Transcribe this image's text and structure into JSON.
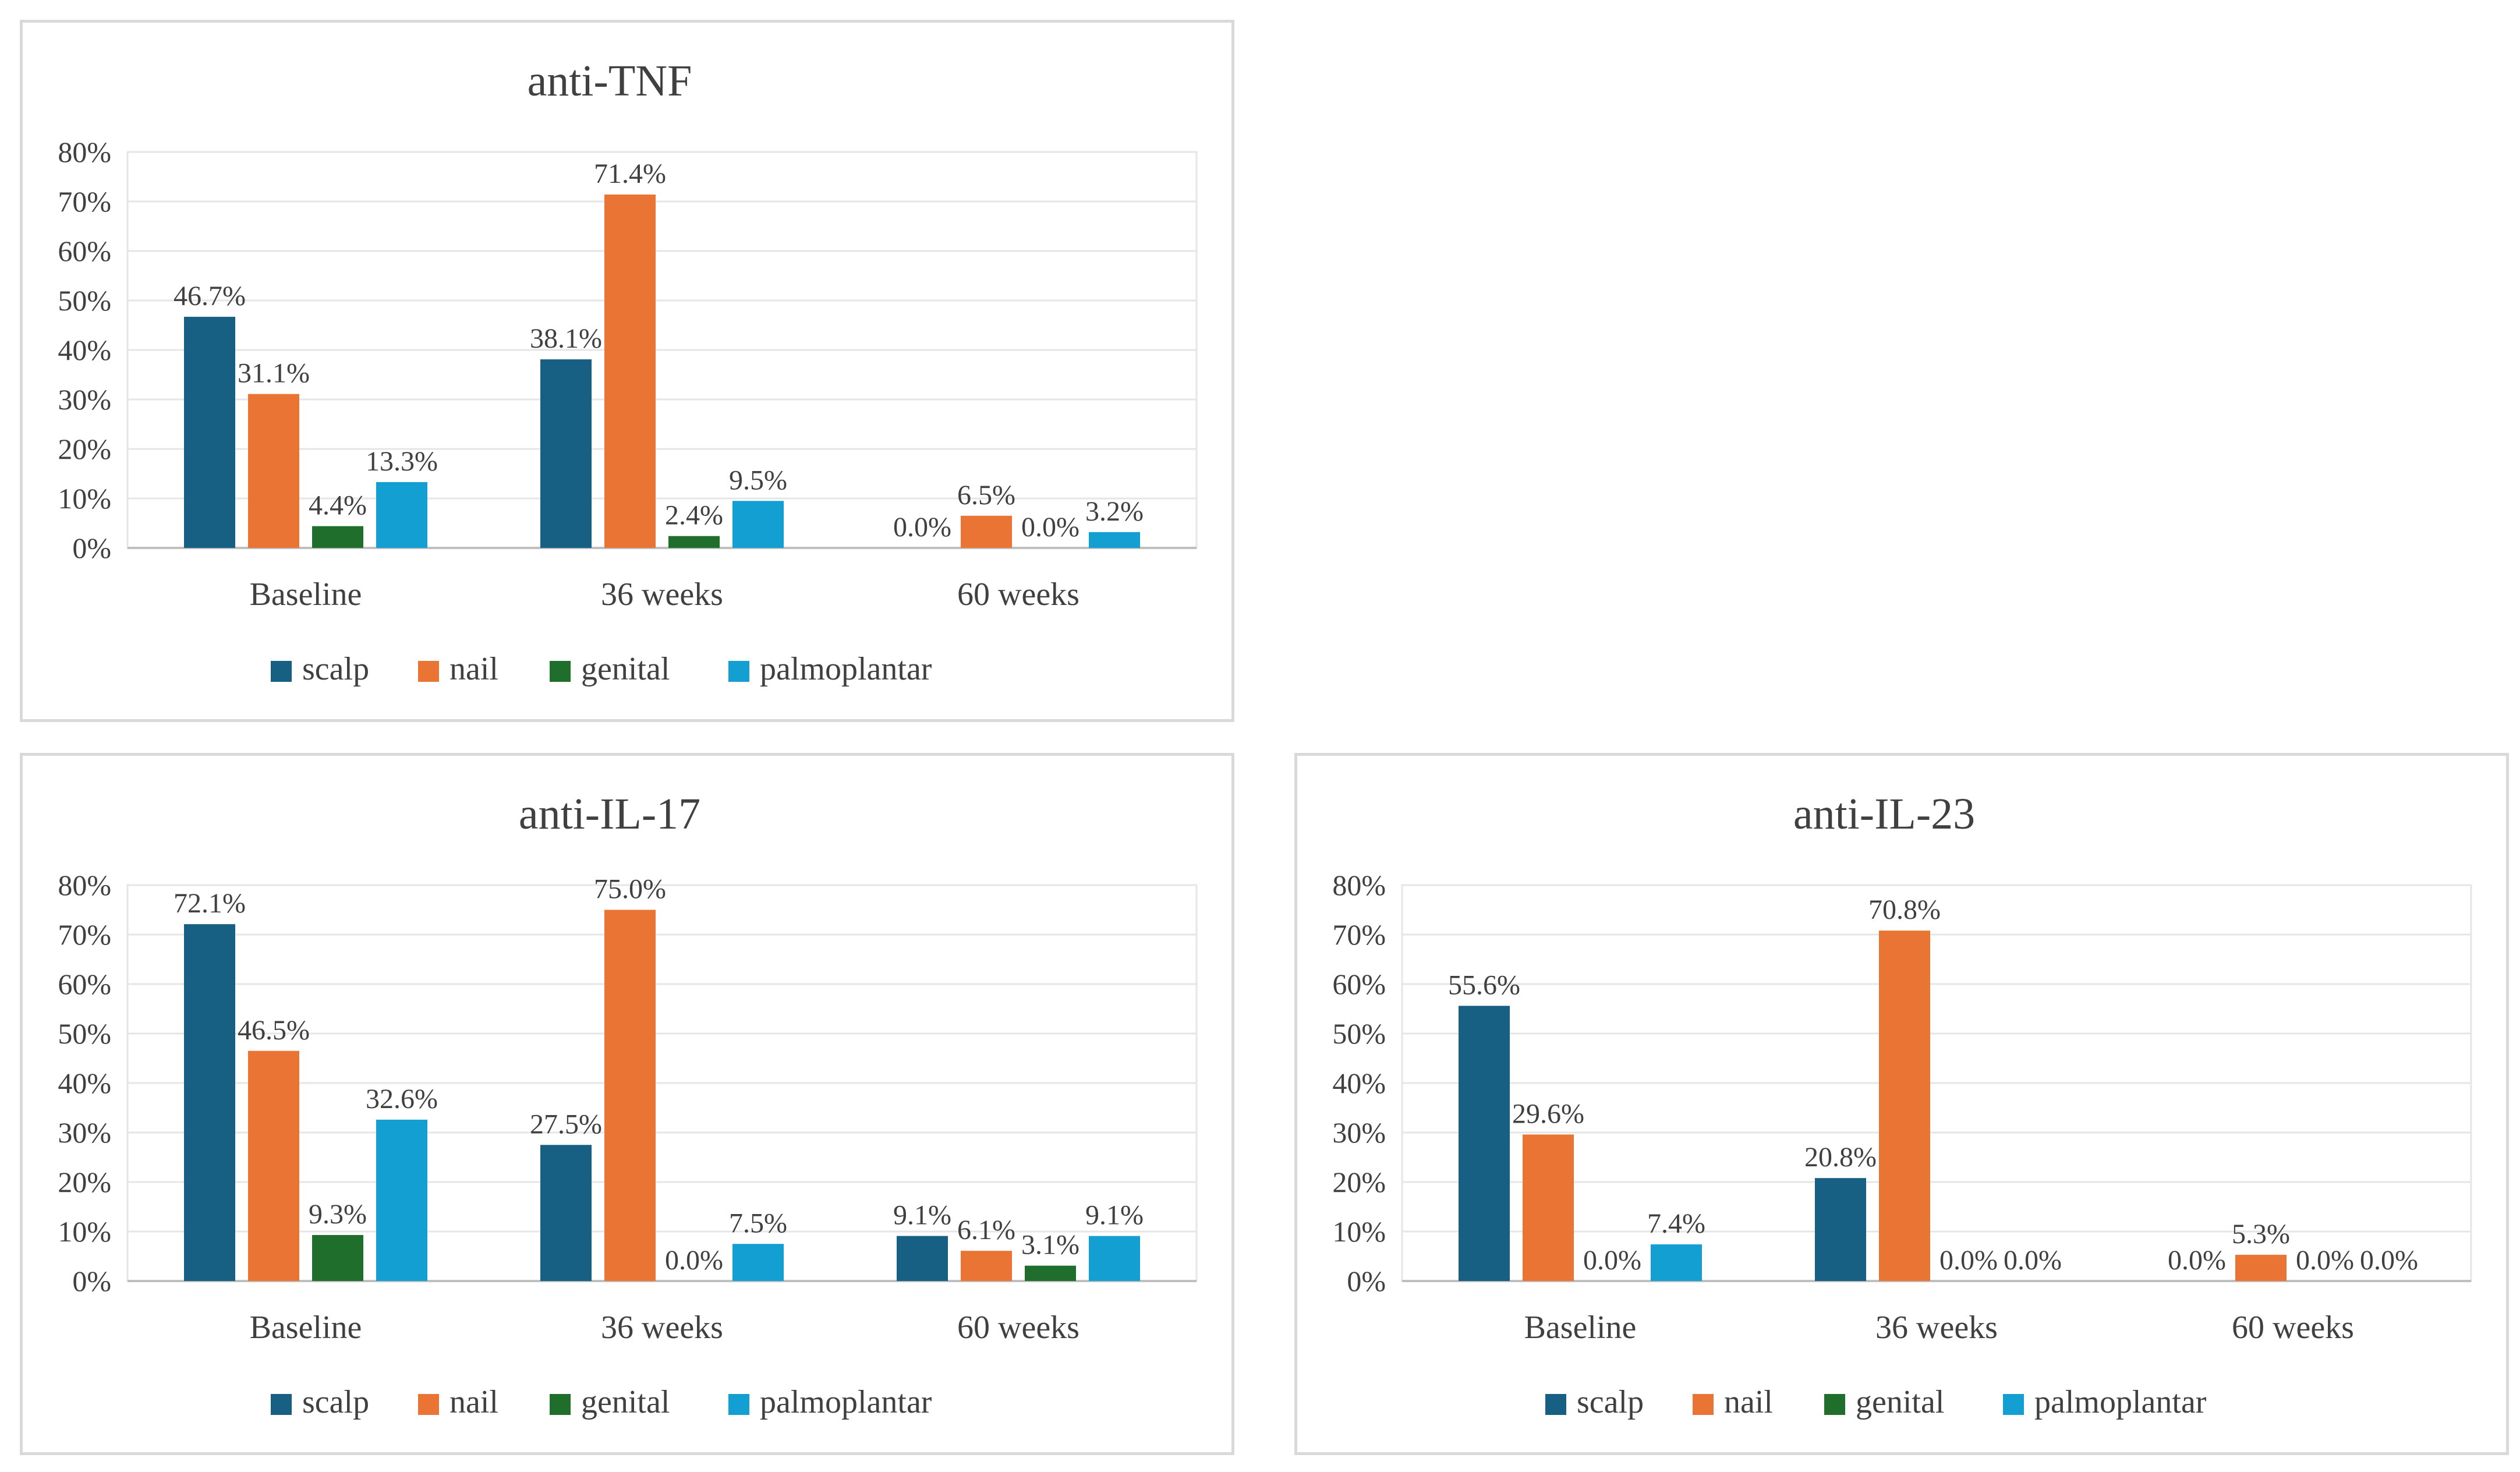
{
  "colors": {
    "scalp": "#176083",
    "nail": "#ea7433",
    "genital": "#1f6e2c",
    "palmoplantar": "#149fd3",
    "grid": "#e6e6e6",
    "axis": "#bfbfbf",
    "text": "#404040"
  },
  "chart_data": [
    {
      "type": "bar",
      "title": "anti-TNF",
      "categories": [
        "Baseline",
        "36 weeks",
        "60 weeks"
      ],
      "yticks": [
        "0%",
        "10%",
        "20%",
        "30%",
        "40%",
        "50%",
        "60%",
        "70%",
        "80%"
      ],
      "ylim": [
        0,
        80
      ],
      "legend_position": "bottom",
      "series": [
        {
          "name": "scalp",
          "values": [
            46.7,
            38.1,
            0.0
          ],
          "labels": [
            "46.7%",
            "38.1%",
            "0.0%"
          ]
        },
        {
          "name": "nail",
          "values": [
            31.1,
            71.4,
            6.5
          ],
          "labels": [
            "31.1%",
            "71.4%",
            "6.5%"
          ]
        },
        {
          "name": "genital",
          "values": [
            4.4,
            2.4,
            0.0
          ],
          "labels": [
            "4.4%",
            "2.4%",
            "0.0%"
          ]
        },
        {
          "name": "palmoplantar",
          "values": [
            13.3,
            9.5,
            3.2
          ],
          "labels": [
            "13.3%",
            "9.5%",
            "3.2%"
          ]
        }
      ]
    },
    {
      "type": "bar",
      "title": "anti-IL-17",
      "categories": [
        "Baseline",
        "36 weeks",
        "60 weeks"
      ],
      "yticks": [
        "0%",
        "10%",
        "20%",
        "30%",
        "40%",
        "50%",
        "60%",
        "70%",
        "80%"
      ],
      "ylim": [
        0,
        80
      ],
      "legend_position": "bottom",
      "series": [
        {
          "name": "scalp",
          "values": [
            72.1,
            27.5,
            9.1
          ],
          "labels": [
            "72.1%",
            "27.5%",
            "9.1%"
          ]
        },
        {
          "name": "nail",
          "values": [
            46.5,
            75.0,
            6.1
          ],
          "labels": [
            "46.5%",
            "75.0%",
            "6.1%"
          ]
        },
        {
          "name": "genital",
          "values": [
            9.3,
            0.0,
            3.1
          ],
          "labels": [
            "9.3%",
            "0.0%",
            "3.1%"
          ]
        },
        {
          "name": "palmoplantar",
          "values": [
            32.6,
            7.5,
            9.1
          ],
          "labels": [
            "32.6%",
            "7.5%",
            "9.1%"
          ]
        }
      ]
    },
    {
      "type": "bar",
      "title": "anti-IL-23",
      "categories": [
        "Baseline",
        "36 weeks",
        "60 weeks"
      ],
      "yticks": [
        "0%",
        "10%",
        "20%",
        "30%",
        "40%",
        "50%",
        "60%",
        "70%",
        "80%"
      ],
      "ylim": [
        0,
        80
      ],
      "legend_position": "bottom",
      "series": [
        {
          "name": "scalp",
          "values": [
            55.6,
            20.8,
            0.0
          ],
          "labels": [
            "55.6%",
            "20.8%",
            "0.0%"
          ]
        },
        {
          "name": "nail",
          "values": [
            29.6,
            70.8,
            5.3
          ],
          "labels": [
            "29.6%",
            "70.8%",
            "5.3%"
          ]
        },
        {
          "name": "genital",
          "values": [
            0.0,
            0.0,
            0.0
          ],
          "labels": [
            "0.0%",
            "0.0%",
            "0.0%"
          ]
        },
        {
          "name": "palmoplantar",
          "values": [
            7.4,
            0.0,
            0.0
          ],
          "labels": [
            "7.4%",
            "0.0%",
            "0.0%"
          ]
        }
      ]
    }
  ]
}
